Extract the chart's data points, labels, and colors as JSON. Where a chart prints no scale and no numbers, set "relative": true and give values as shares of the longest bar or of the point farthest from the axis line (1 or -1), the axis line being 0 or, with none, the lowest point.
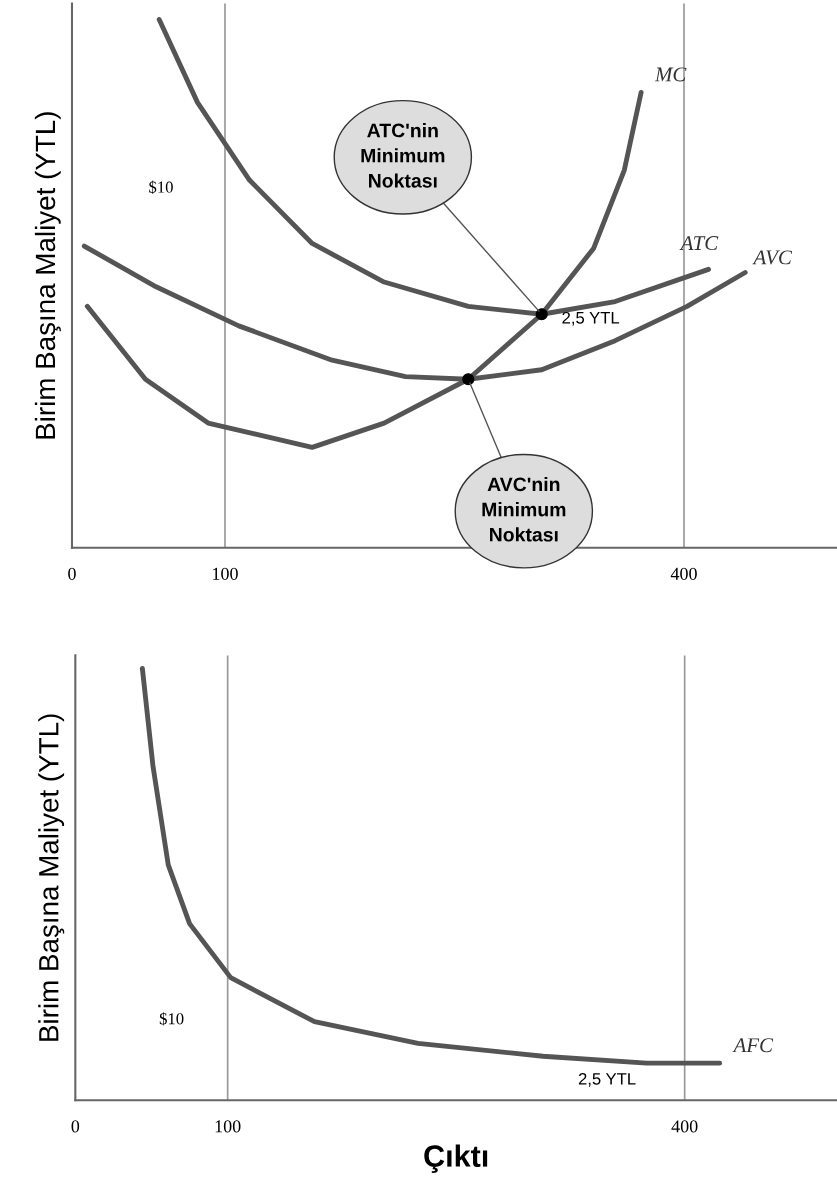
{
  "chart_data": [
    {
      "type": "line",
      "relative": true,
      "ylabel": "Birim Başına Maliyet (YTL)",
      "xlim": [
        0,
        500
      ],
      "xticks": [
        0,
        100,
        400
      ],
      "grid": false,
      "legend": false,
      "series": [
        {
          "name": "MC",
          "color": "#555555",
          "x": [
            10,
            48,
            89,
            157,
            204,
            259,
            307,
            341,
            361,
            372
          ],
          "values": [
            0.457,
            0.319,
            0.236,
            0.19,
            0.236,
            0.319,
            0.442,
            0.567,
            0.715,
            0.862
          ]
        },
        {
          "name": "ATC",
          "color": "#555555",
          "x": [
            57,
            82,
            116,
            157,
            204,
            259,
            307,
            355,
            416
          ],
          "values": [
            1,
            0.843,
            0.696,
            0.576,
            0.503,
            0.457,
            0.442,
            0.466,
            0.527
          ]
        },
        {
          "name": "AVC",
          "color": "#555555",
          "x": [
            8,
            55,
            109,
            170,
            218,
            259,
            307,
            355,
            402,
            440
          ],
          "values": [
            0.571,
            0.494,
            0.42,
            0.355,
            0.324,
            0.319,
            0.337,
            0.392,
            0.457,
            0.521
          ]
        },
        {
          "type": "scatter",
          "color": "#000000",
          "x": [
            307,
            259
          ],
          "values": [
            0.442,
            0.319
          ]
        }
      ],
      "ref_lines": [
        {
          "axis": "x",
          "value": 100,
          "color": "#999999"
        },
        {
          "axis": "x",
          "value": 400,
          "color": "#999999"
        }
      ],
      "annotations": [
        {
          "text": "ATC'nin\nMinimum\nNoktası",
          "x": 307,
          "y": 0.442
        },
        {
          "text": "AVC'nin\nMinimum\nNoktası",
          "x": 259,
          "y": 0.319
        },
        "$10",
        "2,5 YTL"
      ]
    },
    {
      "type": "line",
      "relative": true,
      "ylabel": "Birim Başına Maliyet (YTL)",
      "xlabel": "Çıktı",
      "xlim": [
        0,
        500
      ],
      "xticks": [
        0,
        100,
        400
      ],
      "grid": false,
      "legend": false,
      "series": [
        {
          "name": "AFC",
          "color": "#555555",
          "x": [
            44,
            51,
            61,
            75,
            102,
            157,
            225,
            307,
            375,
            423
          ],
          "values": [
            1,
            0.773,
            0.545,
            0.409,
            0.284,
            0.182,
            0.132,
            0.102,
            0.086,
            0.086
          ]
        }
      ],
      "ref_lines": [
        {
          "axis": "x",
          "value": 100,
          "color": "#999999"
        },
        {
          "axis": "x",
          "value": 400,
          "color": "#999999"
        }
      ],
      "annotations": [
        "$10",
        "2,5 YTL"
      ]
    }
  ]
}
